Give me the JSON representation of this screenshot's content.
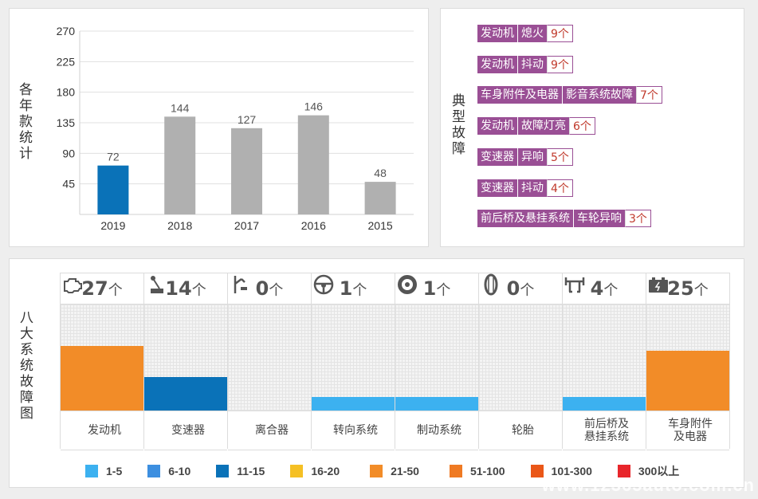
{
  "chart_data": [
    {
      "type": "bar",
      "title": "各年款统计",
      "categories": [
        "2019",
        "2018",
        "2017",
        "2016",
        "2015"
      ],
      "values": [
        72,
        144,
        127,
        146,
        48
      ],
      "yticks": [
        "270",
        "225",
        "180",
        "135",
        "90",
        "45"
      ],
      "ylim": [
        0,
        270
      ],
      "grid": true,
      "colors": [
        "#0a72b8",
        "#b0b0b0",
        "#b0b0b0",
        "#b0b0b0",
        "#b0b0b0"
      ]
    },
    {
      "type": "bar",
      "title": "八大系统故障图",
      "categories": [
        "发动机",
        "变速器",
        "离合器",
        "转向系统",
        "制动系统",
        "轮胎",
        "前后桥及悬挂系统",
        "车身附件及电器"
      ],
      "values": [
        27,
        14,
        0,
        1,
        1,
        0,
        4,
        25
      ],
      "unit": "个",
      "legend": {
        "placement": "bottom",
        "items": [
          {
            "label": "1-5",
            "color": "#3cb1f0"
          },
          {
            "label": "6-10",
            "color": "#3d8fe0"
          },
          {
            "label": "11-15",
            "color": "#0a72b8"
          },
          {
            "label": "16-20",
            "color": "#f5c024"
          },
          {
            "label": "21-50",
            "color": "#f28c28"
          },
          {
            "label": "51-100",
            "color": "#ef7a23"
          },
          {
            "label": "101-300",
            "color": "#ea5718"
          },
          {
            "label": "300以上",
            "color": "#e8262b"
          }
        ]
      }
    }
  ],
  "typical_faults": {
    "title": "典型故障",
    "items": [
      {
        "system": "发动机",
        "fault": "熄火",
        "count": "9个"
      },
      {
        "system": "发动机",
        "fault": "抖动",
        "count": "9个"
      },
      {
        "system": "车身附件及电器",
        "fault": "影音系统故障",
        "count": "7个"
      },
      {
        "system": "发动机",
        "fault": "故障灯亮",
        "count": "6个"
      },
      {
        "system": "变速器",
        "fault": "异响",
        "count": "5个"
      },
      {
        "system": "变速器",
        "fault": "抖动",
        "count": "4个"
      },
      {
        "system": "前后桥及悬挂系统",
        "fault": "车轮异响",
        "count": "3个"
      }
    ]
  },
  "systems": [
    {
      "count": "27",
      "unit": "个",
      "label": "发动机",
      "icon": "engine-icon",
      "value": 27,
      "color": "#f28c28"
    },
    {
      "count": "14",
      "unit": "个",
      "label": "变速器",
      "icon": "gear-shift-icon",
      "value": 14,
      "color": "#0a72b8"
    },
    {
      "count": "0",
      "unit": "个",
      "label": "离合器",
      "icon": "clutch-pedal-icon",
      "value": 0,
      "color": "#3cb1f0"
    },
    {
      "count": "1",
      "unit": "个",
      "label": "转向系统",
      "icon": "steering-wheel-icon",
      "value": 1,
      "color": "#3cb1f0"
    },
    {
      "count": "1",
      "unit": "个",
      "label": "制动系统",
      "icon": "brake-disc-icon",
      "value": 1,
      "color": "#3cb1f0"
    },
    {
      "count": "0",
      "unit": "个",
      "label": "轮胎",
      "icon": "tire-icon",
      "value": 0,
      "color": "#3cb1f0"
    },
    {
      "count": "4",
      "unit": "个",
      "label": "前后桥及悬挂系统",
      "icon": "suspension-icon",
      "value": 4,
      "color": "#3cb1f0"
    },
    {
      "count": "25",
      "unit": "个",
      "label": "车身附件及电器",
      "icon": "battery-icon",
      "value": 25,
      "color": "#f28c28"
    }
  ],
  "watermark": "www.12365auto.com.cn"
}
